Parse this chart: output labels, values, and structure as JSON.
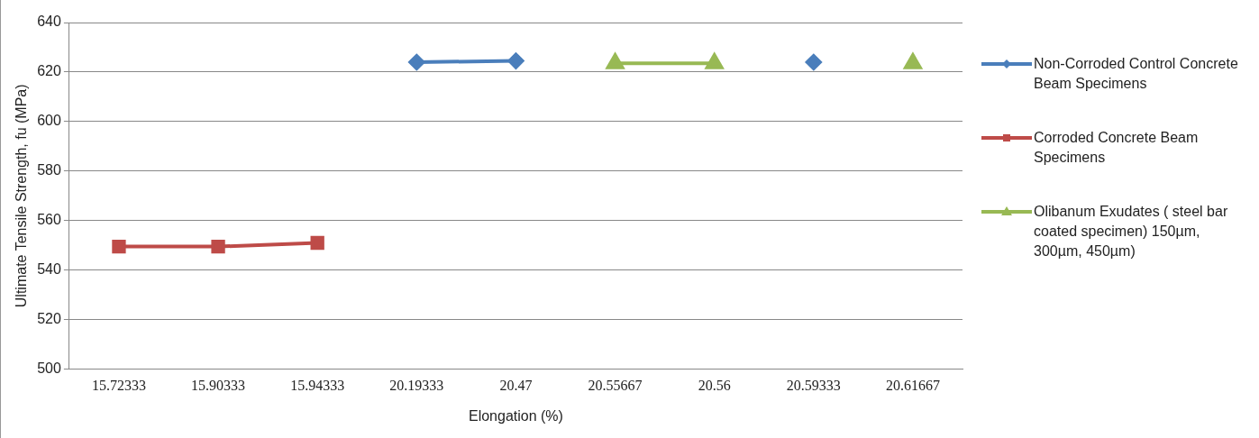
{
  "chart_data": {
    "type": "line",
    "xlabel": "Elongation (%)",
    "ylabel": "Ultimate Tensile Strength, fu (MPa)",
    "categories": [
      "15.72333",
      "15.90333",
      "15.94333",
      "20.19333",
      "20.47",
      "20.55667",
      "20.56",
      "20.59333",
      "20.61667"
    ],
    "ylim": [
      500,
      640
    ],
    "yticks": [
      500,
      520,
      540,
      560,
      580,
      600,
      620,
      640
    ],
    "grid": "y",
    "legend": "right",
    "series": [
      {
        "name": " Non-Corroded Control Concrete Beam Specimens",
        "color": "#4a7ebb",
        "marker": "diamond",
        "values": [
          null,
          null,
          null,
          624,
          624.5,
          null,
          null,
          624,
          null
        ]
      },
      {
        "name": "Corroded  Concrete Beam Specimens",
        "color": "#be4b48",
        "marker": "square",
        "values": [
          549.5,
          549.5,
          551,
          null,
          null,
          null,
          null,
          null,
          null
        ]
      },
      {
        "name": "Olibanum  Exudates ( steel bar coated specimen) 150µm, 300µm, 450µm)",
        "color": "#98b954",
        "marker": "triangle",
        "values": [
          null,
          null,
          null,
          null,
          null,
          623.5,
          623.5,
          null,
          623.5
        ]
      }
    ]
  }
}
